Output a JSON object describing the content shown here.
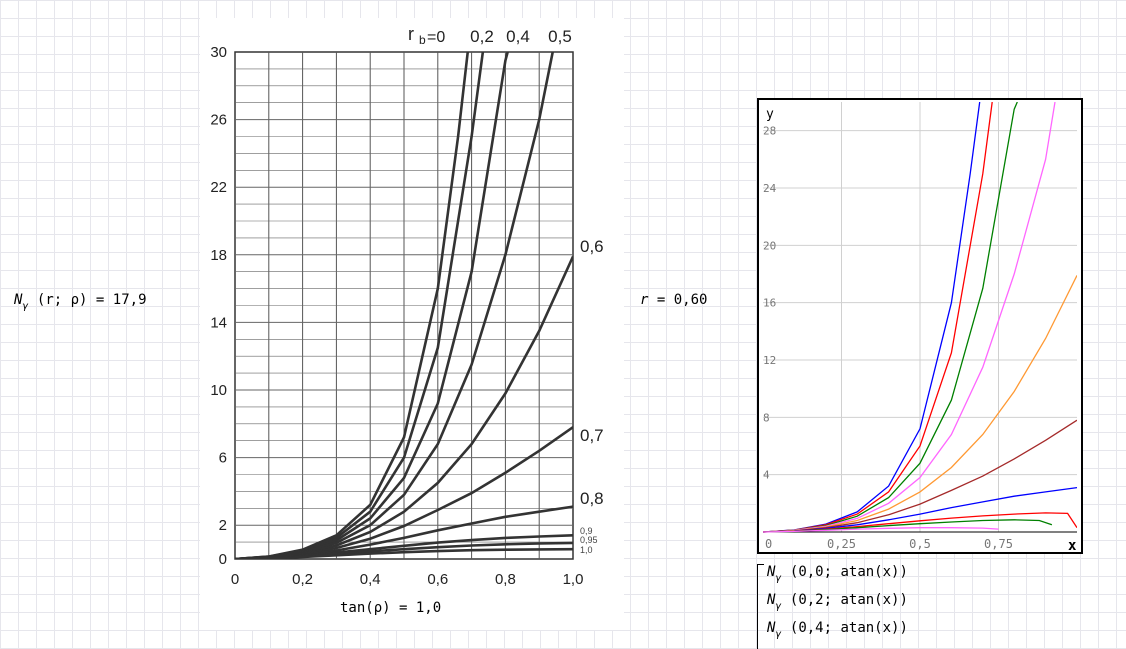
{
  "worksheet": {
    "n_gamma_expr": {
      "prefix": "N",
      "sub": "γ",
      "args": "(r; ρ)",
      "equals": "= 17,9"
    },
    "r_expr": {
      "lhs": "r",
      "rhs": "= 0,60"
    },
    "tan_expr": {
      "lhs": "tan(ρ)",
      "rhs": "= 1,0"
    }
  },
  "legend": [
    {
      "sub": "γ",
      "args": "(0,0; atan(x))"
    },
    {
      "sub": "γ",
      "args": "(0,2; atan(x))"
    },
    {
      "sub": "γ",
      "args": "(0,4; atan(x))"
    }
  ],
  "chart_data": [
    {
      "type": "line",
      "title": "",
      "xlabel": "",
      "ylabel": "",
      "xlim": [
        0,
        1.0
      ],
      "ylim": [
        0,
        30
      ],
      "grid": true,
      "x_ticks": [
        "0",
        "0,2",
        "0,4",
        "0,6",
        "0,8",
        "1,0"
      ],
      "y_ticks": [
        "0",
        "2",
        "6",
        "10",
        "14",
        "18",
        "22",
        "26",
        "30"
      ],
      "top_label": {
        "r": "r",
        "b": "b",
        "eq": "=0"
      },
      "series": [
        {
          "name": "0",
          "values": [
            [
              0,
              0
            ],
            [
              0.1,
              0.15
            ],
            [
              0.2,
              0.55
            ],
            [
              0.3,
              1.4
            ],
            [
              0.4,
              3.2
            ],
            [
              0.5,
              7.2
            ],
            [
              0.6,
              16.0
            ],
            [
              0.66,
              25.0
            ],
            [
              0.7,
              32.0
            ]
          ]
        },
        {
          "name": "0,2",
          "values": [
            [
              0,
              0
            ],
            [
              0.1,
              0.14
            ],
            [
              0.2,
              0.5
            ],
            [
              0.3,
              1.25
            ],
            [
              0.4,
              2.8
            ],
            [
              0.5,
              6.0
            ],
            [
              0.6,
              12.5
            ],
            [
              0.7,
              25.0
            ],
            [
              0.74,
              31.0
            ]
          ]
        },
        {
          "name": "0,4",
          "values": [
            [
              0,
              0
            ],
            [
              0.1,
              0.13
            ],
            [
              0.2,
              0.45
            ],
            [
              0.3,
              1.1
            ],
            [
              0.4,
              2.4
            ],
            [
              0.5,
              4.8
            ],
            [
              0.6,
              9.2
            ],
            [
              0.7,
              17.0
            ],
            [
              0.8,
              29.5
            ],
            [
              0.82,
              31.0
            ]
          ]
        },
        {
          "name": "0,5",
          "values": [
            [
              0,
              0
            ],
            [
              0.1,
              0.12
            ],
            [
              0.2,
              0.4
            ],
            [
              0.3,
              0.95
            ],
            [
              0.4,
              2.0
            ],
            [
              0.5,
              3.8
            ],
            [
              0.6,
              6.8
            ],
            [
              0.7,
              11.5
            ],
            [
              0.8,
              18.0
            ],
            [
              0.9,
              26.0
            ],
            [
              0.95,
              31.0
            ]
          ]
        },
        {
          "name": "0,6",
          "values": [
            [
              0,
              0
            ],
            [
              0.1,
              0.1
            ],
            [
              0.2,
              0.35
            ],
            [
              0.3,
              0.8
            ],
            [
              0.4,
              1.6
            ],
            [
              0.5,
              2.8
            ],
            [
              0.6,
              4.5
            ],
            [
              0.7,
              6.8
            ],
            [
              0.8,
              9.8
            ],
            [
              0.9,
              13.5
            ],
            [
              1.0,
              17.9
            ]
          ]
        },
        {
          "name": "0,7",
          "values": [
            [
              0,
              0
            ],
            [
              0.1,
              0.08
            ],
            [
              0.2,
              0.3
            ],
            [
              0.3,
              0.65
            ],
            [
              0.4,
              1.2
            ],
            [
              0.5,
              1.95
            ],
            [
              0.6,
              2.9
            ],
            [
              0.7,
              3.9
            ],
            [
              0.8,
              5.1
            ],
            [
              0.9,
              6.4
            ],
            [
              1.0,
              7.8
            ]
          ]
        },
        {
          "name": "0,8",
          "values": [
            [
              0,
              0
            ],
            [
              0.1,
              0.07
            ],
            [
              0.2,
              0.25
            ],
            [
              0.3,
              0.5
            ],
            [
              0.4,
              0.85
            ],
            [
              0.5,
              1.25
            ],
            [
              0.6,
              1.7
            ],
            [
              0.7,
              2.1
            ],
            [
              0.8,
              2.5
            ],
            [
              0.9,
              2.8
            ],
            [
              1.0,
              3.1
            ]
          ]
        },
        {
          "name": "0,9",
          "values": [
            [
              0,
              0
            ],
            [
              0.1,
              0.06
            ],
            [
              0.2,
              0.2
            ],
            [
              0.3,
              0.38
            ],
            [
              0.4,
              0.58
            ],
            [
              0.5,
              0.78
            ],
            [
              0.6,
              0.97
            ],
            [
              0.7,
              1.12
            ],
            [
              0.8,
              1.25
            ],
            [
              0.9,
              1.33
            ],
            [
              1.0,
              1.4
            ]
          ]
        },
        {
          "name": "0,95",
          "values": [
            [
              0,
              0
            ],
            [
              0.1,
              0.05
            ],
            [
              0.2,
              0.17
            ],
            [
              0.3,
              0.3
            ],
            [
              0.4,
              0.45
            ],
            [
              0.5,
              0.58
            ],
            [
              0.6,
              0.7
            ],
            [
              0.7,
              0.8
            ],
            [
              0.8,
              0.87
            ],
            [
              0.9,
              0.92
            ],
            [
              1.0,
              0.95
            ]
          ]
        },
        {
          "name": "1,0",
          "values": [
            [
              0,
              0
            ],
            [
              0.1,
              0.04
            ],
            [
              0.2,
              0.12
            ],
            [
              0.3,
              0.22
            ],
            [
              0.4,
              0.32
            ],
            [
              0.5,
              0.4
            ],
            [
              0.6,
              0.47
            ],
            [
              0.7,
              0.52
            ],
            [
              0.8,
              0.55
            ],
            [
              0.9,
              0.57
            ],
            [
              1.0,
              0.58
            ]
          ]
        }
      ]
    },
    {
      "type": "line",
      "title": "",
      "xlabel": "x",
      "ylabel": "y",
      "xlim": [
        0,
        1.0
      ],
      "ylim": [
        0,
        30
      ],
      "grid": true,
      "x_ticks": [
        "0",
        "0,25",
        "0,5",
        "0,75"
      ],
      "y_ticks": [
        "4",
        "8",
        "12",
        "16",
        "20",
        "24",
        "28"
      ],
      "series": [
        {
          "color": "#0000ff",
          "values": [
            [
              0,
              0
            ],
            [
              0.1,
              0.15
            ],
            [
              0.2,
              0.55
            ],
            [
              0.3,
              1.4
            ],
            [
              0.4,
              3.2
            ],
            [
              0.5,
              7.2
            ],
            [
              0.6,
              16.0
            ],
            [
              0.66,
              25.0
            ],
            [
              0.69,
              30.0
            ]
          ]
        },
        {
          "color": "#ff0000",
          "values": [
            [
              0,
              0
            ],
            [
              0.1,
              0.14
            ],
            [
              0.2,
              0.5
            ],
            [
              0.3,
              1.25
            ],
            [
              0.4,
              2.8
            ],
            [
              0.5,
              6.0
            ],
            [
              0.6,
              12.5
            ],
            [
              0.7,
              25.0
            ],
            [
              0.73,
              30.0
            ]
          ]
        },
        {
          "color": "#008000",
          "values": [
            [
              0,
              0
            ],
            [
              0.1,
              0.13
            ],
            [
              0.2,
              0.45
            ],
            [
              0.3,
              1.1
            ],
            [
              0.4,
              2.4
            ],
            [
              0.5,
              4.8
            ],
            [
              0.6,
              9.2
            ],
            [
              0.7,
              17.0
            ],
            [
              0.8,
              29.5
            ],
            [
              0.81,
              30.0
            ]
          ]
        },
        {
          "color": "#ff66ff",
          "values": [
            [
              0,
              0
            ],
            [
              0.1,
              0.12
            ],
            [
              0.2,
              0.4
            ],
            [
              0.3,
              0.95
            ],
            [
              0.4,
              2.0
            ],
            [
              0.5,
              3.8
            ],
            [
              0.6,
              6.8
            ],
            [
              0.7,
              11.5
            ],
            [
              0.8,
              18.0
            ],
            [
              0.9,
              26.0
            ],
            [
              0.93,
              30.0
            ]
          ]
        },
        {
          "color": "#ff9933",
          "values": [
            [
              0,
              0
            ],
            [
              0.1,
              0.1
            ],
            [
              0.2,
              0.35
            ],
            [
              0.3,
              0.8
            ],
            [
              0.4,
              1.6
            ],
            [
              0.5,
              2.8
            ],
            [
              0.6,
              4.5
            ],
            [
              0.7,
              6.8
            ],
            [
              0.8,
              9.8
            ],
            [
              0.9,
              13.5
            ],
            [
              1.0,
              17.9
            ]
          ]
        },
        {
          "color": "#a52a2a",
          "values": [
            [
              0,
              0
            ],
            [
              0.1,
              0.08
            ],
            [
              0.2,
              0.3
            ],
            [
              0.3,
              0.65
            ],
            [
              0.4,
              1.2
            ],
            [
              0.5,
              1.95
            ],
            [
              0.6,
              2.9
            ],
            [
              0.7,
              3.9
            ],
            [
              0.8,
              5.1
            ],
            [
              0.9,
              6.4
            ],
            [
              1.0,
              7.8
            ]
          ]
        },
        {
          "color": "#0000ff",
          "values": [
            [
              0,
              0
            ],
            [
              0.1,
              0.07
            ],
            [
              0.2,
              0.25
            ],
            [
              0.3,
              0.5
            ],
            [
              0.4,
              0.85
            ],
            [
              0.5,
              1.25
            ],
            [
              0.6,
              1.7
            ],
            [
              0.7,
              2.1
            ],
            [
              0.8,
              2.5
            ],
            [
              0.9,
              2.8
            ],
            [
              1.0,
              3.1
            ]
          ]
        },
        {
          "color": "#ff0000",
          "values": [
            [
              0,
              0
            ],
            [
              0.1,
              0.06
            ],
            [
              0.2,
              0.2
            ],
            [
              0.3,
              0.38
            ],
            [
              0.4,
              0.58
            ],
            [
              0.5,
              0.78
            ],
            [
              0.6,
              0.97
            ],
            [
              0.7,
              1.12
            ],
            [
              0.8,
              1.25
            ],
            [
              0.9,
              1.33
            ],
            [
              0.97,
              1.3
            ],
            [
              1.0,
              0.3
            ]
          ]
        },
        {
          "color": "#008000",
          "values": [
            [
              0,
              0
            ],
            [
              0.1,
              0.05
            ],
            [
              0.2,
              0.17
            ],
            [
              0.3,
              0.3
            ],
            [
              0.4,
              0.45
            ],
            [
              0.5,
              0.58
            ],
            [
              0.6,
              0.7
            ],
            [
              0.7,
              0.8
            ],
            [
              0.8,
              0.85
            ],
            [
              0.88,
              0.8
            ],
            [
              0.92,
              0.5
            ]
          ]
        },
        {
          "color": "#ff66ff",
          "values": [
            [
              0,
              0
            ],
            [
              0.1,
              0.04
            ],
            [
              0.2,
              0.12
            ],
            [
              0.3,
              0.2
            ],
            [
              0.4,
              0.26
            ],
            [
              0.5,
              0.3
            ],
            [
              0.6,
              0.3
            ],
            [
              0.7,
              0.27
            ],
            [
              0.75,
              0.2
            ]
          ]
        }
      ]
    }
  ]
}
